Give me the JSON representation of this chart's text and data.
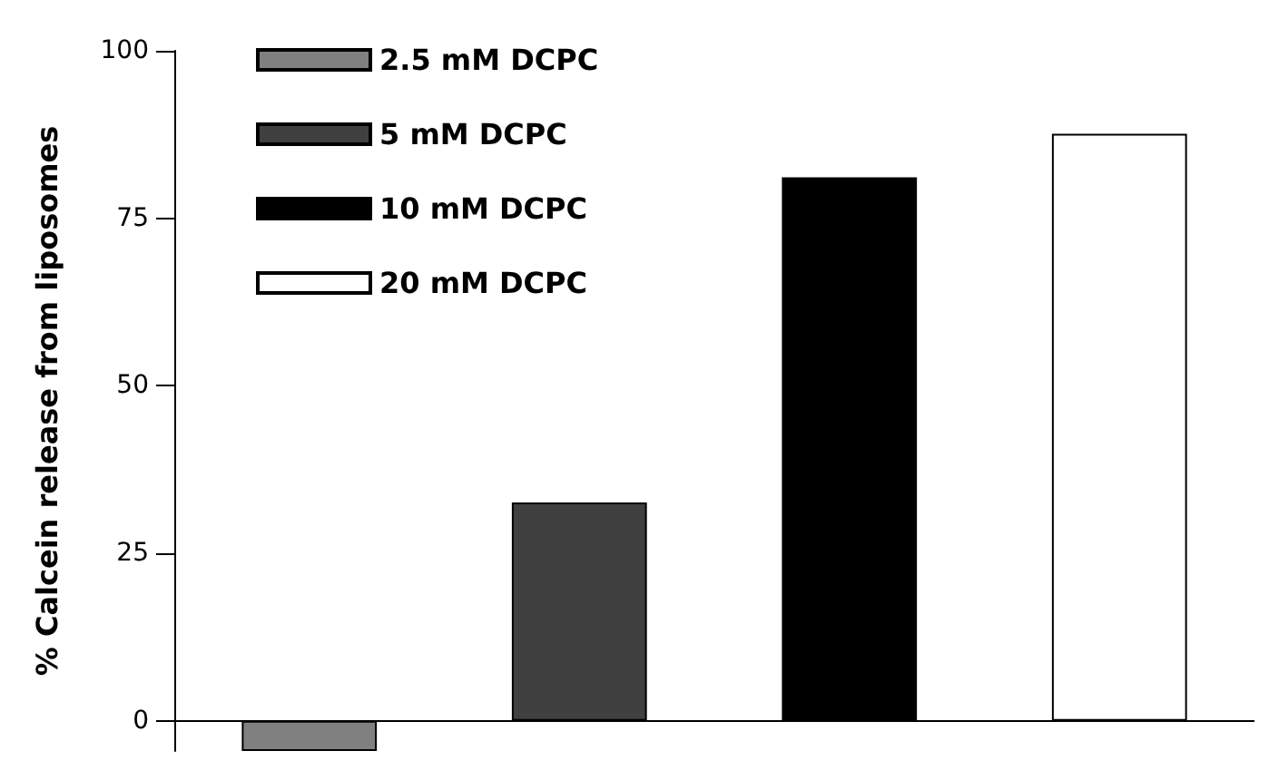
{
  "chart_data": {
    "type": "bar",
    "ylabel": "% Calcein release from liposomes",
    "categories": [
      null,
      null,
      null,
      null
    ],
    "series": [
      {
        "name": "2.5 mM DCPC",
        "color": "#808080",
        "values": [
          -4.5,
          null,
          null,
          null
        ]
      },
      {
        "name": "5 mM DCPC",
        "color": "#404040",
        "values": [
          null,
          32.6,
          null,
          null
        ]
      },
      {
        "name": "10 mM DCPC",
        "color": "#000000",
        "values": [
          null,
          null,
          81.1,
          null
        ]
      },
      {
        "name": "20 mM DCPC",
        "color": "#ffffff",
        "values": [
          null,
          null,
          null,
          87.6
        ]
      }
    ],
    "ylim": [
      -4.5,
      100
    ],
    "yticks": [
      0,
      25,
      50,
      75,
      100
    ],
    "legend": "top left"
  }
}
